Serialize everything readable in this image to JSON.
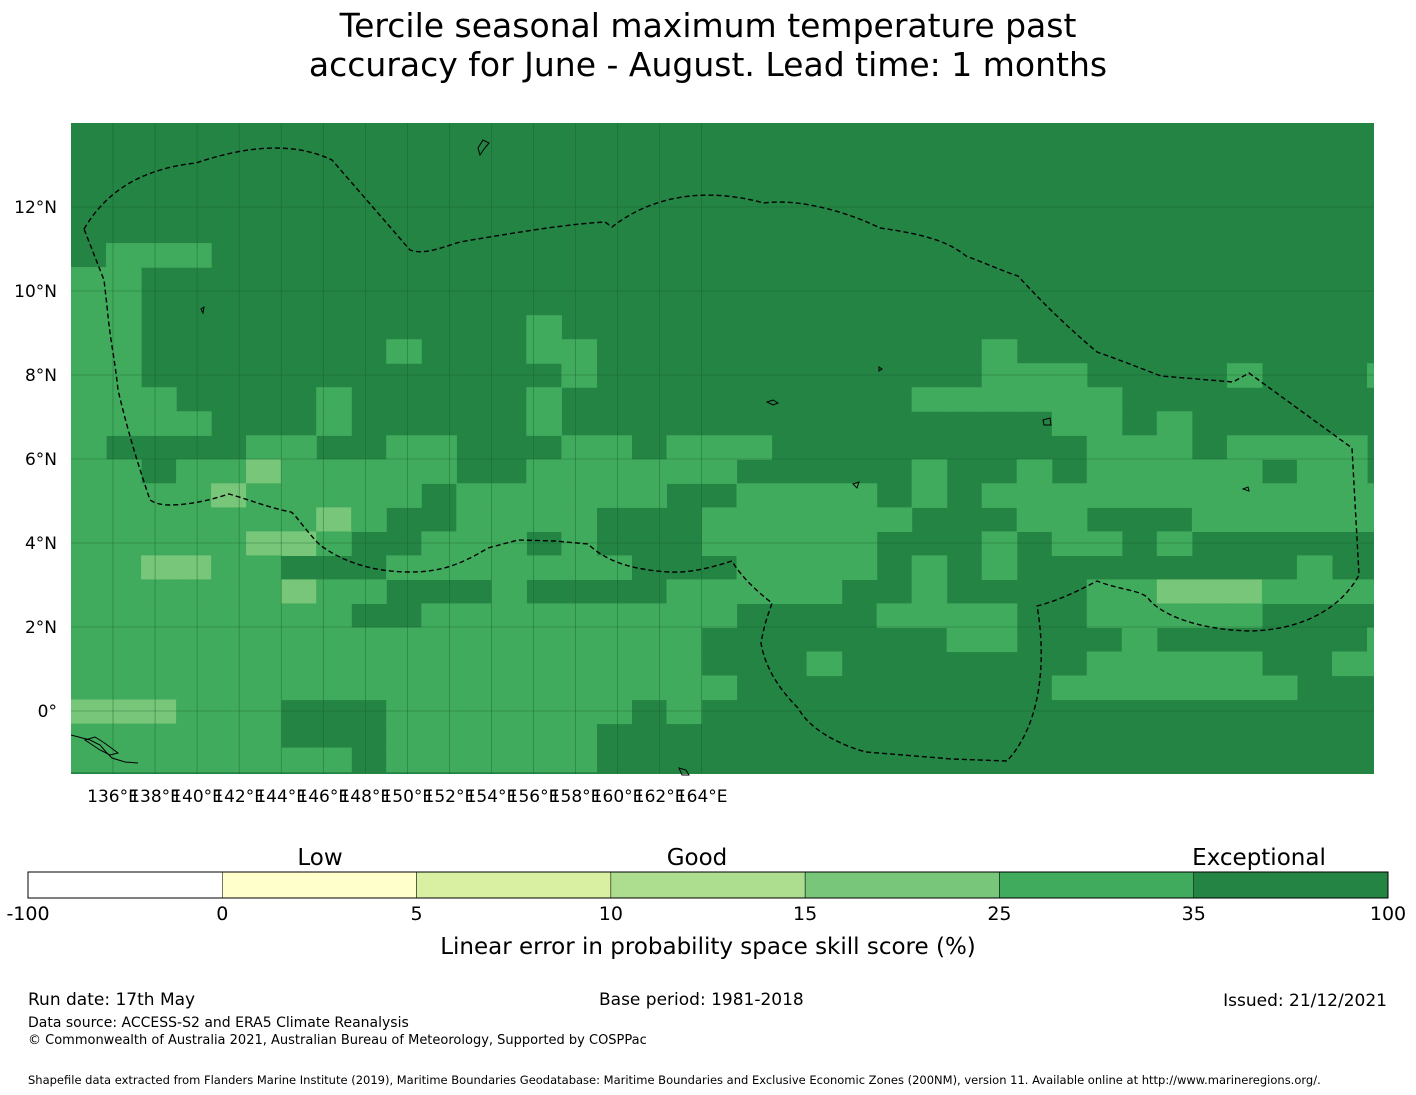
{
  "title": {
    "line1": "Tercile seasonal maximum temperature past",
    "line2": "accuracy for June - August. Lead time: 1 months"
  },
  "map": {
    "x_ticks": [
      "136°E",
      "138°E",
      "140°E",
      "142°E",
      "144°E",
      "146°E",
      "148°E",
      "150°E",
      "152°E",
      "154°E",
      "156°E",
      "158°E",
      "160°E",
      "162°E",
      "164°E"
    ],
    "y_ticks": [
      "12°N",
      "10°N",
      "8°N",
      "6°N",
      "4°N",
      "2°N",
      "0°"
    ],
    "grid_values_legend": "Each cell value is a LEPS skill score (%) mapped to the colour bands below",
    "skill_grid": [
      "ssssssssssssssssssssssssssssssssssssss",
      "ssssssssssssssssssssssssssssssssssssss",
      "ssssssssssssssssssssssssssssssssssssss",
      "ssssssssssssssssssssssssssssssssssssss",
      "ssssssssssssssssssssssssssssssssssssss",
      "sgggssssssssssssssssssssssssssssssssss",
      "ggssssssssssssssssssssssssssssssssssss",
      "ggssssssssssssssssssssssssssssssssssss",
      "ggsssssssssssgssssssssssssssssssssssss",
      "ggsssssssgsssggsssssssssssgsssssssssss",
      "ggssssssssssssgsssssssssssgggssssgsssg",
      "gggssssgsssssgssssssssssggggggsssssss",
      "ggggsssgsssssgssssssssssssssggsgssssss",
      "gssssggssggsssggsgggsssssssssgggsggggs",
      "ggsgglgggggssggggggsssssgssgsgggggsgg",
      "gggglgggggsggggggssggggsgsgggggggggggg",
      "ggggggglgssggggsssggggggsssggsssgggggg",
      "gggggllgssgggsgsssgggggsssgsggsgssssss",
      "ggllggsssgggggggsssggggsgsgssssssssgs",
      "gggggglggsssgssssgggggssgssssgglllgggg",
      "ggggggggssgggggggggssssggggssgggggsssss",
      "ggggggggggggggggggsssssssggsssgssssssg",
      "ggggggggggggggggggsssgsssssssgggggssgg",
      "gggggggggggggggggggsssssssssgggggggss",
      "lllgggsssgggggggsgssssssssssssssssssss",
      "ggggggsssggggggssssssssssssssssssssss",
      "gggggggg ggggggssssssssssssssssssssss"
    ]
  },
  "colorbar": {
    "categories": {
      "low": "Low",
      "good": "Good",
      "exceptional": "Exceptional"
    },
    "ticks": [
      "-100",
      "0",
      "5",
      "10",
      "15",
      "25",
      "35",
      "100"
    ],
    "bins": [
      {
        "from": -100,
        "to": 0,
        "color": "#ffffff"
      },
      {
        "from": 0,
        "to": 5,
        "color": "#ffffcc"
      },
      {
        "from": 5,
        "to": 10,
        "color": "#d9f0a3"
      },
      {
        "from": 10,
        "to": 15,
        "color": "#addd8e"
      },
      {
        "from": 15,
        "to": 25,
        "color": "#78c679"
      },
      {
        "from": 25,
        "to": 35,
        "color": "#41ab5d"
      },
      {
        "from": 35,
        "to": 100,
        "color": "#238443"
      }
    ],
    "label": "Linear error in probability space skill score (%)"
  },
  "footer": {
    "run_date": "Run date: 17th May",
    "base_period": "Base period: 1981-2018",
    "issued": "Issued: 21/12/2021",
    "data_source": "Data source: ACCESS-S2 and ERA5 Climate Reanalysis",
    "copyright": "© Commonwealth of Australia 2021, Australian Bureau of Meteorology, Supported by COSPPac",
    "shapefile": "Shapefile data extracted from Flanders Marine Institute (2019), Maritime Boundaries Geodatabase: Maritime Boundaries and Exclusive Economic Zones (200NM), version 11. Available online at http://www.marineregions.org/."
  }
}
